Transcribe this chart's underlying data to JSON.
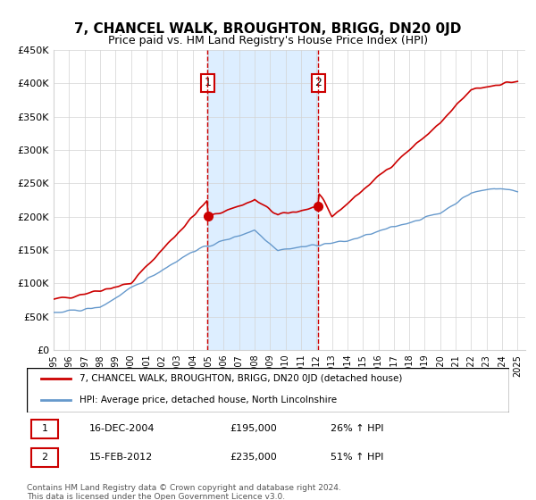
{
  "title": "7, CHANCEL WALK, BROUGHTON, BRIGG, DN20 0JD",
  "subtitle": "Price paid vs. HM Land Registry's House Price Index (HPI)",
  "sale1_date_num": 2004.96,
  "sale1_price": 195000,
  "sale1_label": "16-DEC-2004",
  "sale1_hpi_pct": "26%",
  "sale2_date_num": 2012.12,
  "sale2_price": 235000,
  "sale2_label": "15-FEB-2012",
  "sale2_hpi_pct": "51%",
  "vline1_x": 2004.96,
  "vline2_x": 2012.12,
  "xmin": 1995,
  "xmax": 2025.5,
  "ymin": 0,
  "ymax": 450000,
  "red_color": "#cc0000",
  "blue_color": "#6699cc",
  "shade_color": "#ddeeff",
  "legend_label_red": "7, CHANCEL WALK, BROUGHTON, BRIGG, DN20 0JD (detached house)",
  "legend_label_blue": "HPI: Average price, detached house, North Lincolnshire",
  "footnote": "Contains HM Land Registry data © Crown copyright and database right 2024.\nThis data is licensed under the Open Government Licence v3.0.",
  "yticks": [
    0,
    50000,
    100000,
    150000,
    200000,
    250000,
    300000,
    350000,
    400000,
    450000
  ],
  "ytick_labels": [
    "£0",
    "£50K",
    "£100K",
    "£150K",
    "£200K",
    "£250K",
    "£300K",
    "£350K",
    "£400K",
    "£450K"
  ]
}
